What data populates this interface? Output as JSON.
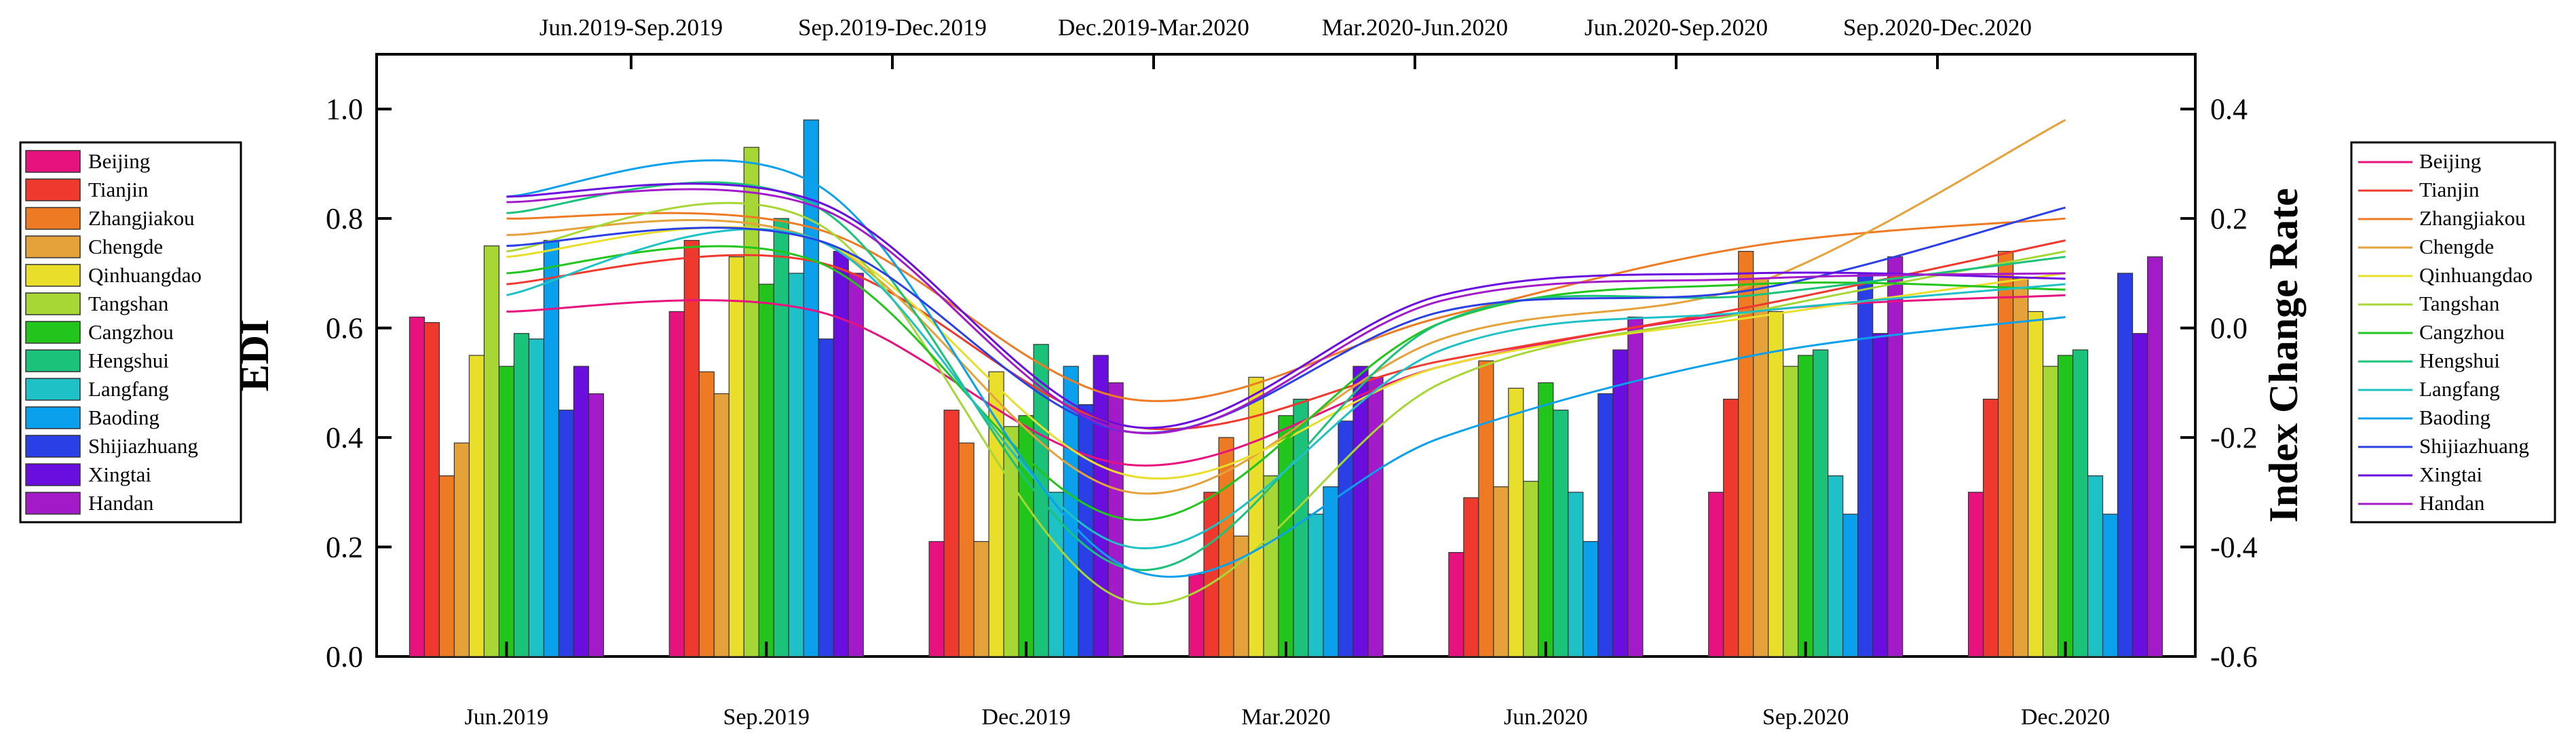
{
  "chart_data": {
    "type": "bar+line",
    "left_axis": {
      "label": "EDI",
      "range": [
        0.0,
        1.1
      ],
      "ticks": [
        "0.0",
        "0.2",
        "0.4",
        "0.6",
        "0.8",
        "1.0"
      ]
    },
    "right_axis": {
      "label": "Index Change Rate",
      "range": [
        -0.6,
        0.5
      ],
      "ticks": [
        "-0.6",
        "-0.4",
        "-0.2",
        "0.0",
        "0.2",
        "0.4"
      ]
    },
    "categories": [
      "Jun.2019",
      "Sep.2019",
      "Dec.2019",
      "Mar.2020",
      "Jun.2020",
      "Sep.2020",
      "Dec.2020"
    ],
    "periods": [
      "Jun.2019-Sep.2019",
      "Sep.2019-Dec.2019",
      "Dec.2019-Mar.2020",
      "Mar.2020-Jun.2020",
      "Jun.2020-Sep.2020",
      "Sep.2020-Dec.2020"
    ],
    "bar_series": [
      {
        "name": "Beijing",
        "color": "#e8127e",
        "values": [
          0.62,
          0.63,
          0.21,
          0.15,
          0.19,
          0.3,
          0.3
        ]
      },
      {
        "name": "Tianjin",
        "color": "#f0392e",
        "values": [
          0.61,
          0.76,
          0.45,
          0.3,
          0.29,
          0.47,
          0.47
        ]
      },
      {
        "name": "Zhangjiakou",
        "color": "#ee7b24",
        "values": [
          0.33,
          0.52,
          0.39,
          0.4,
          0.54,
          0.74,
          0.74
        ]
      },
      {
        "name": "Chengde",
        "color": "#e5a23a",
        "values": [
          0.39,
          0.48,
          0.21,
          0.22,
          0.31,
          0.69,
          0.69
        ]
      },
      {
        "name": "Qinhuangdao",
        "color": "#e9de2a",
        "values": [
          0.55,
          0.73,
          0.52,
          0.51,
          0.49,
          0.63,
          0.63
        ]
      },
      {
        "name": "Tangshan",
        "color": "#a6d734",
        "values": [
          0.75,
          0.93,
          0.42,
          0.33,
          0.32,
          0.53,
          0.53
        ]
      },
      {
        "name": "Cangzhou",
        "color": "#22c51c",
        "values": [
          0.53,
          0.68,
          0.44,
          0.44,
          0.5,
          0.55,
          0.55
        ]
      },
      {
        "name": "Hengshui",
        "color": "#1bc27a",
        "values": [
          0.59,
          0.8,
          0.57,
          0.47,
          0.45,
          0.56,
          0.56
        ]
      },
      {
        "name": "Langfang",
        "color": "#1ec1c5",
        "values": [
          0.58,
          0.7,
          0.3,
          0.26,
          0.3,
          0.33,
          0.33
        ]
      },
      {
        "name": "Baoding",
        "color": "#0aa0ec",
        "values": [
          0.76,
          0.98,
          0.53,
          0.31,
          0.21,
          0.26,
          0.26
        ]
      },
      {
        "name": "Shijiazhuang",
        "color": "#2a40e6",
        "values": [
          0.45,
          0.58,
          0.46,
          0.43,
          0.48,
          0.7,
          0.7
        ]
      },
      {
        "name": "Xingtai",
        "color": "#6a0ee0",
        "values": [
          0.53,
          0.74,
          0.55,
          0.53,
          0.56,
          0.59,
          0.59
        ]
      },
      {
        "name": "Handan",
        "color": "#a31ac9",
        "values": [
          0.48,
          0.7,
          0.5,
          0.51,
          0.62,
          0.73,
          0.73
        ]
      }
    ],
    "line_series": [
      {
        "name": "Beijing",
        "color": "#e8127e",
        "values": [
          0.03,
          0.03,
          -0.25,
          -0.07,
          0.03,
          0.06
        ]
      },
      {
        "name": "Tianjin",
        "color": "#f0392e",
        "values": [
          0.08,
          0.12,
          -0.18,
          -0.06,
          0.04,
          0.16
        ]
      },
      {
        "name": "Zhangjiakou",
        "color": "#ee7b24",
        "values": [
          0.2,
          0.18,
          -0.13,
          0.02,
          0.15,
          0.2
        ]
      },
      {
        "name": "Chengde",
        "color": "#e5a23a",
        "values": [
          0.17,
          0.16,
          -0.3,
          -0.02,
          0.08,
          0.38
        ]
      },
      {
        "name": "Qinhuangdao",
        "color": "#e9de2a",
        "values": [
          0.13,
          0.16,
          -0.27,
          -0.07,
          0.02,
          0.1
        ]
      },
      {
        "name": "Tangshan",
        "color": "#a6d734",
        "values": [
          0.14,
          0.19,
          -0.5,
          -0.1,
          0.03,
          0.14
        ]
      },
      {
        "name": "Cangzhou",
        "color": "#22c51c",
        "values": [
          0.1,
          0.12,
          -0.35,
          0.01,
          0.08,
          0.07
        ]
      },
      {
        "name": "Hengshui",
        "color": "#1bc27a",
        "values": [
          0.21,
          0.22,
          -0.44,
          0.01,
          0.06,
          0.13
        ]
      },
      {
        "name": "Langfang",
        "color": "#1ec1c5",
        "values": [
          0.06,
          0.16,
          -0.4,
          -0.04,
          0.03,
          0.08
        ]
      },
      {
        "name": "Baoding",
        "color": "#0aa0ec",
        "values": [
          0.24,
          0.26,
          -0.44,
          -0.2,
          -0.05,
          0.02
        ]
      },
      {
        "name": "Shijiazhuang",
        "color": "#2a40e6",
        "values": [
          0.15,
          0.16,
          -0.19,
          0.03,
          0.07,
          0.22
        ]
      },
      {
        "name": "Xingtai",
        "color": "#6a0ee0",
        "values": [
          0.24,
          0.23,
          -0.18,
          0.06,
          0.1,
          0.09
        ]
      },
      {
        "name": "Handan",
        "color": "#a31ac9",
        "values": [
          0.23,
          0.22,
          -0.19,
          0.05,
          0.09,
          0.1
        ]
      }
    ]
  }
}
